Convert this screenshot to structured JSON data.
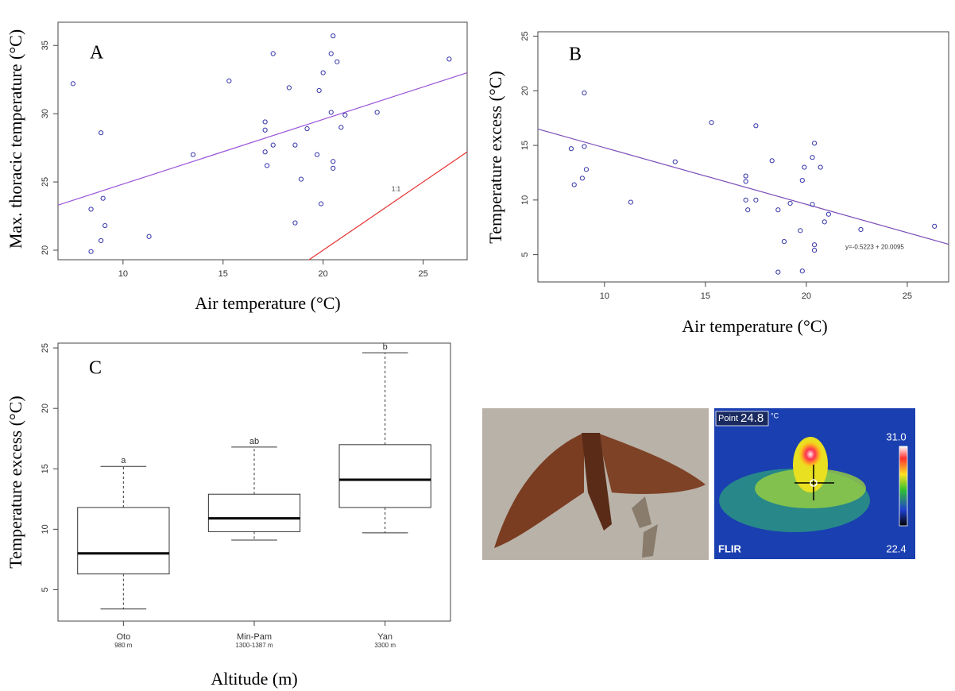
{
  "chart_data": [
    {
      "type": "scatter",
      "panel_label": "A",
      "x_label": "Air temperature (°C)",
      "y_label": "Max. thoracic temperature (°C)",
      "xlim": [
        6.75,
        27.2
      ],
      "ylim": [
        19.3,
        36.7
      ],
      "xticks": [
        10,
        15,
        20,
        25
      ],
      "yticks": [
        20,
        25,
        30,
        35
      ],
      "series": [
        {
          "color": "#3535a8",
          "x": [
            7.5,
            8.9,
            9.0,
            9.1,
            8.4,
            8.9,
            8.4,
            11.3,
            13.5,
            15.3,
            17.1,
            17.1,
            17.1,
            17.2,
            17.5,
            17.5,
            18.3,
            18.6,
            18.6,
            18.9,
            19.2,
            19.8,
            19.7,
            19.9,
            20.0,
            20.4,
            20.5,
            20.5,
            20.4,
            20.5,
            20.7,
            20.9,
            21.1,
            22.7,
            26.3
          ],
          "values": [
            32.2,
            28.6,
            23.8,
            21.8,
            23.0,
            20.7,
            19.9,
            21.0,
            27.0,
            32.4,
            29.4,
            28.8,
            27.2,
            26.2,
            34.4,
            27.7,
            31.9,
            27.7,
            22.0,
            25.2,
            28.9,
            31.7,
            27.0,
            23.4,
            33.0,
            30.1,
            26.5,
            26.0,
            34.4,
            35.7,
            33.8,
            29.0,
            29.9,
            30.1,
            34.0
          ]
        }
      ],
      "lines": [
        {
          "color": "#9a55d8",
          "x": [
            6.75,
            27.2
          ],
          "values": [
            23.3,
            33.0
          ]
        },
        {
          "color": "#e53030",
          "x": [
            19.3,
            27.2
          ],
          "values": [
            19.3,
            27.2
          ],
          "label": "1:1"
        }
      ]
    },
    {
      "type": "scatter",
      "panel_label": "B",
      "x_label": "Air temperature (°C)",
      "y_label": "Temperature excess (°C)",
      "xlim": [
        6.7,
        27.05
      ],
      "ylim": [
        2.5,
        25.4
      ],
      "xticks": [
        10,
        15,
        20,
        25
      ],
      "yticks": [
        5,
        10,
        15,
        20,
        25
      ],
      "series": [
        {
          "color": "#3535a8",
          "x": [
            8.35,
            8.5,
            8.9,
            9.0,
            9.0,
            9.1,
            11.3,
            13.5,
            15.3,
            17.0,
            17.0,
            17.0,
            17.1,
            17.5,
            17.5,
            18.3,
            18.6,
            18.9,
            19.2,
            18.6,
            19.7,
            19.8,
            19.9,
            19.8,
            20.3,
            20.4,
            20.3,
            20.4,
            20.4,
            20.7,
            20.9,
            21.1,
            22.7,
            26.35
          ],
          "values": [
            14.7,
            11.4,
            12.0,
            14.9,
            19.8,
            12.8,
            9.8,
            13.5,
            17.1,
            12.2,
            11.7,
            10.0,
            9.1,
            16.8,
            10.0,
            13.6,
            9.1,
            6.2,
            9.7,
            3.4,
            7.2,
            11.8,
            13.0,
            3.5,
            13.9,
            15.2,
            9.6,
            5.9,
            5.4,
            13.0,
            8.0,
            8.7,
            7.3,
            7.6
          ]
        }
      ],
      "lines": [
        {
          "color": "#7a4cb8",
          "x": [
            6.7,
            27.05
          ],
          "values": [
            16.5,
            5.95
          ],
          "label": "y=-0.5223 + 20.0095"
        }
      ]
    },
    {
      "type": "box",
      "panel_label": "C",
      "x_label": "Altitude (m)",
      "y_label": "Temperature excess (°C)",
      "ylim": [
        2.4,
        25.4
      ],
      "yticks": [
        5,
        10,
        15,
        20,
        25
      ],
      "categories": [
        "Oto",
        "Min-Pam",
        "Yan"
      ],
      "subtitles": [
        "980 m",
        "1300-1387 m",
        "3300 m"
      ],
      "group_labels": [
        "a",
        "ab",
        "b"
      ],
      "boxes": [
        {
          "whislo": 3.4,
          "q1": 6.3,
          "med": 8.0,
          "q3": 11.8,
          "whishi": 15.2
        },
        {
          "whislo": 9.1,
          "q1": 9.8,
          "med": 10.9,
          "q3": 12.9,
          "whishi": 16.8
        },
        {
          "whislo": 9.7,
          "q1": 11.8,
          "med": 14.1,
          "q3": 17.0,
          "whishi": 24.6
        }
      ]
    }
  ],
  "thermal_image": {
    "point_label": "Point",
    "point_value": "24.8",
    "unit": "°C",
    "scale_max": "31.0",
    "scale_min": "22.4",
    "brand": "FLIR"
  }
}
